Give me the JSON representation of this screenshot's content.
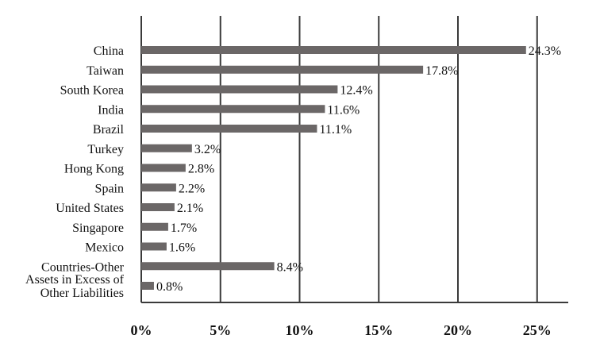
{
  "chart_data": {
    "type": "bar",
    "orientation": "horizontal",
    "categories": [
      "China",
      "Taiwan",
      "South Korea",
      "India",
      "Brazil",
      "Turkey",
      "Hong Kong",
      "Spain",
      "United States",
      "Singapore",
      "Mexico",
      "Countries-Other",
      "Assets in Excess of Other Liabilities"
    ],
    "values": [
      24.3,
      17.8,
      12.4,
      11.6,
      11.1,
      3.2,
      2.8,
      2.2,
      2.1,
      1.7,
      1.6,
      8.4,
      0.8
    ],
    "value_labels": [
      "24.3%",
      "17.8%",
      "12.4%",
      "11.6%",
      "11.1%",
      "3.2%",
      "2.8%",
      "2.2%",
      "2.1%",
      "1.7%",
      "1.6%",
      "8.4%",
      "0.8%"
    ],
    "x_ticks": [
      0,
      5,
      10,
      15,
      20,
      25
    ],
    "x_tick_labels": [
      "0%",
      "5%",
      "10%",
      "15%",
      "20%",
      "25%"
    ],
    "xlim": [
      0,
      27
    ],
    "grid": true,
    "bar_color": "#6b6767",
    "grid_color": "#3a3a3a",
    "title": "",
    "xlabel": "",
    "ylabel": ""
  }
}
